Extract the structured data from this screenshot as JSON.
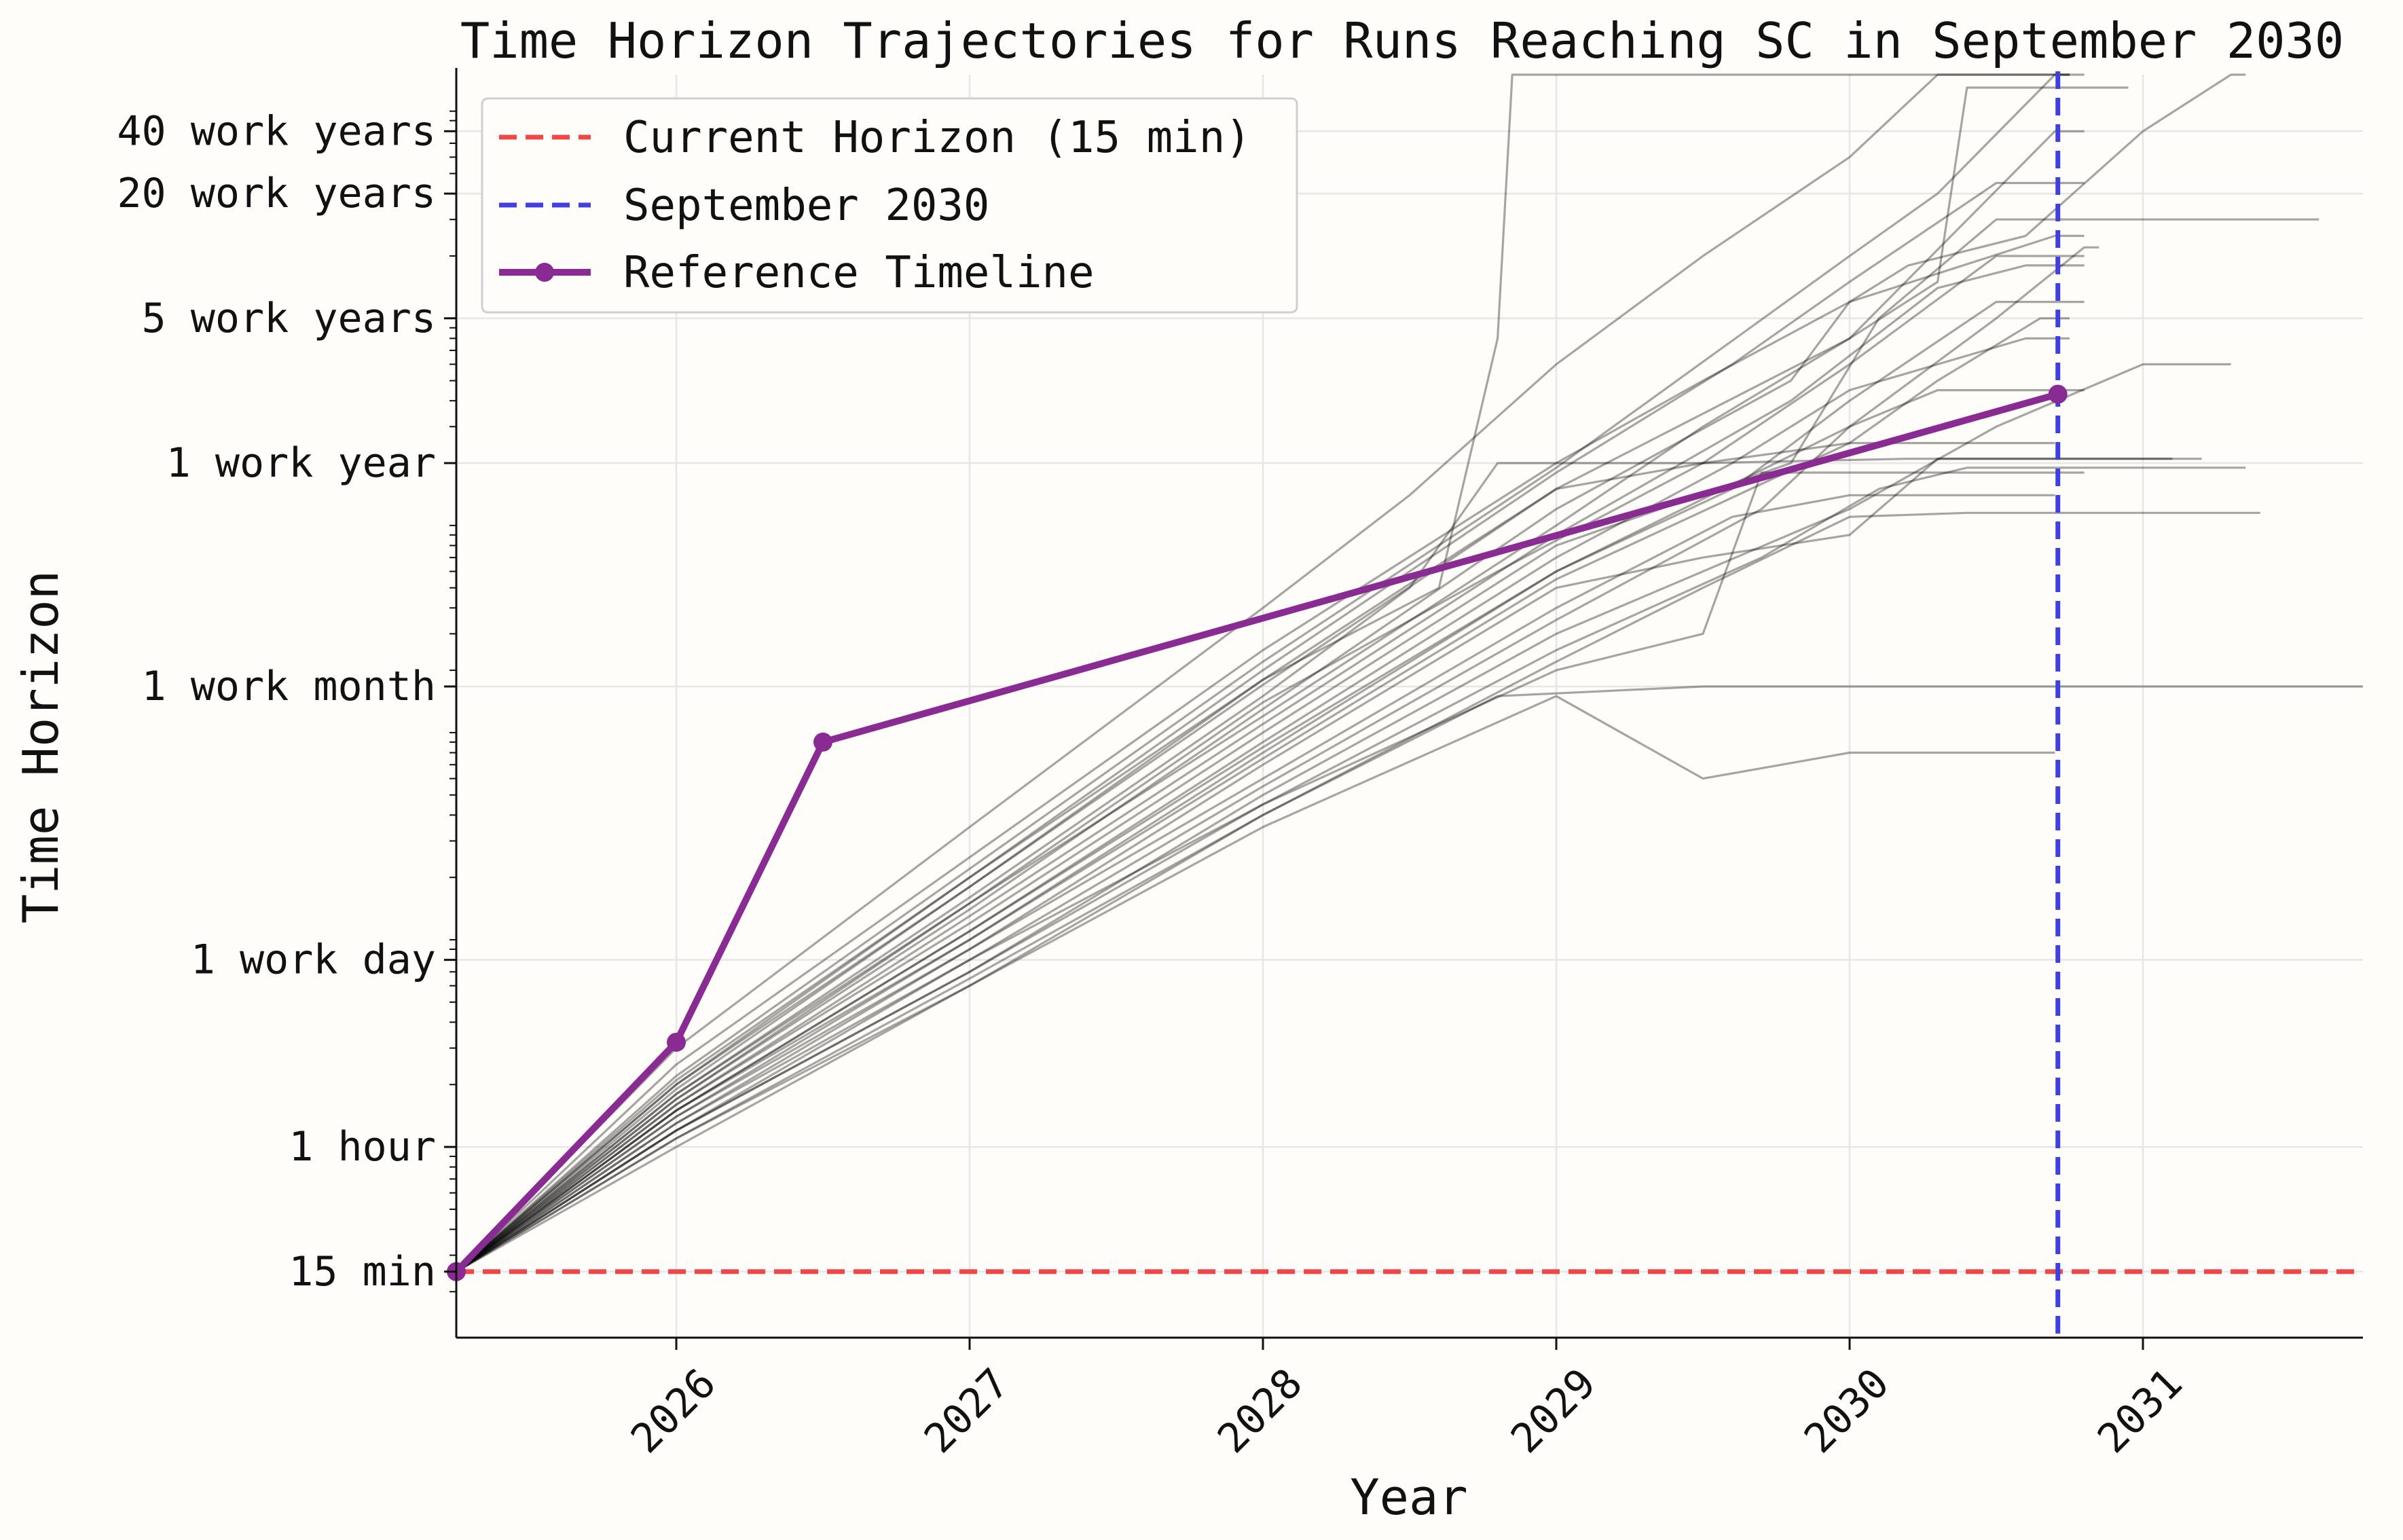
{
  "chart_data": {
    "type": "line",
    "title": "Time Horizon Trajectories for Runs Reaching SC in September 2030",
    "xlabel": "Year",
    "ylabel": "Time Horizon",
    "xlim": [
      2025.25,
      2031.75
    ],
    "ylim_hours": [
      0.12,
      150000
    ],
    "y_scale": "log",
    "grid": true,
    "legend_position": "top-left",
    "x_ticks": [
      {
        "value": 2026,
        "label": "2026"
      },
      {
        "value": 2027,
        "label": "2027"
      },
      {
        "value": 2028,
        "label": "2028"
      },
      {
        "value": 2029,
        "label": "2029"
      },
      {
        "value": 2030,
        "label": "2030"
      },
      {
        "value": 2031,
        "label": "2031"
      }
    ],
    "y_ticks": [
      {
        "hours": 0.25,
        "label": "15 min"
      },
      {
        "hours": 1,
        "label": "1 hour"
      },
      {
        "hours": 8,
        "label": "1 work day"
      },
      {
        "hours": 167,
        "label": "1 work month"
      },
      {
        "hours": 2000,
        "label": "1 work year"
      },
      {
        "hours": 10000,
        "label": "5 work years"
      },
      {
        "hours": 40000,
        "label": "20 work years"
      },
      {
        "hours": 80000,
        "label": "40 work years"
      }
    ],
    "reference_lines": [
      {
        "name": "Current Horizon (15 min)",
        "orientation": "horizontal",
        "hours": 0.25,
        "color": "#f04848",
        "style": "dashed"
      },
      {
        "name": "September 2030",
        "orientation": "vertical",
        "x": 2030.71,
        "color": "#4040e0",
        "style": "dashed"
      }
    ],
    "reference_timeline": {
      "name": "Reference Timeline",
      "color": "#8a2b94",
      "points": [
        {
          "x": 2025.25,
          "hours": 0.25
        },
        {
          "x": 2026.0,
          "hours": 3.2
        },
        {
          "x": 2026.5,
          "hours": 90
        },
        {
          "x": 2030.71,
          "hours": 4300
        }
      ]
    },
    "trajectory_style": {
      "color": "#000000",
      "opacity": 0.35
    },
    "trajectories": [
      [
        [
          2025.25,
          0.25
        ],
        [
          2026,
          3
        ],
        [
          2027,
          35
        ],
        [
          2028,
          400
        ],
        [
          2028.5,
          1400
        ],
        [
          2029,
          6000
        ],
        [
          2029.5,
          20000
        ],
        [
          2030,
          60000
        ],
        [
          2030.3,
          150000
        ],
        [
          2030.5,
          170000
        ],
        [
          2030.8,
          170000
        ]
      ],
      [
        [
          2025.25,
          0.25
        ],
        [
          2026,
          2
        ],
        [
          2027,
          20
        ],
        [
          2028,
          180
        ],
        [
          2028.6,
          500
        ],
        [
          2028.8,
          8000
        ],
        [
          2028.85,
          170000
        ],
        [
          2029.5,
          170000
        ],
        [
          2030.75,
          170000
        ]
      ],
      [
        [
          2025.25,
          0.25
        ],
        [
          2026,
          2.5
        ],
        [
          2027,
          25
        ],
        [
          2028,
          250
        ],
        [
          2029,
          2000
        ],
        [
          2029.5,
          5000
        ],
        [
          2030,
          12000
        ],
        [
          2030.2,
          18000
        ],
        [
          2030.6,
          25000
        ],
        [
          2031,
          80000
        ],
        [
          2031.3,
          280000
        ],
        [
          2031.35,
          280000
        ]
      ],
      [
        [
          2025.25,
          0.25
        ],
        [
          2026,
          1.8
        ],
        [
          2027,
          15
        ],
        [
          2028,
          120
        ],
        [
          2029,
          1000
        ],
        [
          2029.5,
          3000
        ],
        [
          2030,
          8000
        ],
        [
          2030.3,
          15000
        ],
        [
          2030.4,
          130000
        ],
        [
          2030.95,
          130000
        ]
      ],
      [
        [
          2025.25,
          0.25
        ],
        [
          2026,
          2.2
        ],
        [
          2027,
          22
        ],
        [
          2028,
          220
        ],
        [
          2029,
          1900
        ],
        [
          2030,
          20000
        ],
        [
          2030.3,
          40000
        ],
        [
          2030.7,
          200000
        ],
        [
          2030.75,
          200000
        ]
      ],
      [
        [
          2025.25,
          0.25
        ],
        [
          2026,
          1.5
        ],
        [
          2027,
          10
        ],
        [
          2028,
          80
        ],
        [
          2029,
          600
        ],
        [
          2030,
          3000
        ],
        [
          2030.5,
          10000
        ],
        [
          2030.8,
          22000
        ],
        [
          2030.85,
          22000
        ]
      ],
      [
        [
          2025.25,
          0.25
        ],
        [
          2026,
          1.6
        ],
        [
          2027,
          12
        ],
        [
          2028,
          100
        ],
        [
          2029,
          800
        ],
        [
          2029.8,
          2000
        ],
        [
          2030.1,
          10000
        ],
        [
          2030.5,
          30000
        ],
        [
          2030.9,
          30000
        ],
        [
          2031.6,
          30000
        ]
      ],
      [
        [
          2025.25,
          0.25
        ],
        [
          2026,
          1.2
        ],
        [
          2027,
          7
        ],
        [
          2028,
          50
        ],
        [
          2029,
          300
        ],
        [
          2030,
          1200
        ],
        [
          2030.5,
          3000
        ],
        [
          2031,
          6000
        ],
        [
          2031.3,
          6000
        ]
      ],
      [
        [
          2025.25,
          0.25
        ],
        [
          2026,
          1
        ],
        [
          2027,
          6
        ],
        [
          2028,
          40
        ],
        [
          2028.8,
          150
        ],
        [
          2029.5,
          167
        ],
        [
          2031.75,
          167
        ]
      ],
      [
        [
          2025.25,
          0.25
        ],
        [
          2026,
          1.4
        ],
        [
          2027,
          9
        ],
        [
          2028,
          60
        ],
        [
          2029,
          400
        ],
        [
          2029.6,
          1100
        ],
        [
          2030,
          1400
        ],
        [
          2030.7,
          1400
        ]
      ],
      [
        [
          2025.25,
          0.25
        ],
        [
          2026,
          1.3
        ],
        [
          2027,
          8
        ],
        [
          2028,
          45
        ],
        [
          2029,
          200
        ],
        [
          2029.5,
          300
        ],
        [
          2029.7,
          1800
        ],
        [
          2030.8,
          1800
        ]
      ],
      [
        [
          2025.25,
          0.25
        ],
        [
          2026,
          1.7
        ],
        [
          2027,
          14
        ],
        [
          2028,
          130
        ],
        [
          2029,
          1200
        ],
        [
          2029.8,
          5000
        ],
        [
          2030,
          12000
        ],
        [
          2030.7,
          25000
        ],
        [
          2030.8,
          25000
        ]
      ],
      [
        [
          2025.25,
          0.25
        ],
        [
          2026,
          2
        ],
        [
          2027,
          18
        ],
        [
          2028,
          170
        ],
        [
          2029,
          1500
        ],
        [
          2030,
          8000
        ],
        [
          2030.7,
          80000
        ],
        [
          2030.8,
          80000
        ]
      ],
      [
        [
          2025.25,
          0.25
        ],
        [
          2026,
          1.1
        ],
        [
          2027,
          6
        ],
        [
          2028,
          35
        ],
        [
          2029,
          150
        ],
        [
          2029.5,
          60
        ],
        [
          2030,
          80
        ],
        [
          2030.7,
          80
        ]
      ],
      [
        [
          2025.25,
          0.25
        ],
        [
          2026,
          1.2
        ],
        [
          2027,
          7
        ],
        [
          2028,
          45
        ],
        [
          2029,
          250
        ],
        [
          2029.7,
          700
        ],
        [
          2030.1,
          1500
        ],
        [
          2030.4,
          1900
        ],
        [
          2031.35,
          1900
        ]
      ],
      [
        [
          2025.25,
          0.25
        ],
        [
          2026,
          1.5
        ],
        [
          2027,
          11
        ],
        [
          2028,
          90
        ],
        [
          2029,
          700
        ],
        [
          2029.6,
          2000
        ],
        [
          2030,
          4500
        ],
        [
          2030.6,
          8000
        ],
        [
          2030.75,
          8000
        ]
      ],
      [
        [
          2025.25,
          0.25
        ],
        [
          2026,
          1.8
        ],
        [
          2027,
          16
        ],
        [
          2028,
          150
        ],
        [
          2028.5,
          500
        ],
        [
          2028.8,
          2000
        ],
        [
          2029.5,
          2000
        ],
        [
          2030.2,
          2100
        ],
        [
          2031.1,
          2100
        ]
      ],
      [
        [
          2025.25,
          0.25
        ],
        [
          2026,
          1.3
        ],
        [
          2027,
          9
        ],
        [
          2028,
          70
        ],
        [
          2029,
          500
        ],
        [
          2029.5,
          700
        ],
        [
          2030,
          900
        ],
        [
          2030.3,
          2100
        ],
        [
          2031.2,
          2100
        ]
      ],
      [
        [
          2025.25,
          0.25
        ],
        [
          2026,
          1.6
        ],
        [
          2027,
          13
        ],
        [
          2028,
          110
        ],
        [
          2029,
          900
        ],
        [
          2029.8,
          4000
        ],
        [
          2030.3,
          14000
        ],
        [
          2030.6,
          18000
        ],
        [
          2030.8,
          18000
        ]
      ],
      [
        [
          2025.25,
          0.25
        ],
        [
          2026,
          1.4
        ],
        [
          2027,
          10
        ],
        [
          2028,
          75
        ],
        [
          2029,
          550
        ],
        [
          2030,
          2500
        ],
        [
          2030.3,
          5000
        ],
        [
          2030.65,
          10000
        ],
        [
          2030.75,
          10000
        ]
      ],
      [
        [
          2025.25,
          0.25
        ],
        [
          2026,
          1.9
        ],
        [
          2027,
          18
        ],
        [
          2028,
          180
        ],
        [
          2028.7,
          800
        ],
        [
          2029,
          1500
        ],
        [
          2029.5,
          2000
        ],
        [
          2030,
          2500
        ],
        [
          2030.7,
          2500
        ]
      ],
      [
        [
          2025.25,
          0.25
        ],
        [
          2026,
          1.2
        ],
        [
          2027,
          8
        ],
        [
          2028,
          55
        ],
        [
          2029,
          350
        ],
        [
          2029.7,
          1200
        ],
        [
          2030,
          3000
        ],
        [
          2030.3,
          4500
        ],
        [
          2030.8,
          4500
        ]
      ],
      [
        [
          2025.25,
          0.25
        ],
        [
          2026,
          2.1
        ],
        [
          2027,
          20
        ],
        [
          2028,
          200
        ],
        [
          2029,
          1800
        ],
        [
          2029.6,
          6000
        ],
        [
          2030,
          15000
        ],
        [
          2030.5,
          45000
        ],
        [
          2030.8,
          45000
        ]
      ],
      [
        [
          2025.25,
          0.25
        ],
        [
          2026,
          1.5
        ],
        [
          2027,
          11
        ],
        [
          2028,
          85
        ],
        [
          2029,
          600
        ],
        [
          2029.6,
          1500
        ],
        [
          2030,
          4000
        ],
        [
          2030.5,
          12000
        ],
        [
          2030.8,
          12000
        ]
      ],
      [
        [
          2025.25,
          0.25
        ],
        [
          2026,
          1.1
        ],
        [
          2027,
          6.5
        ],
        [
          2028,
          40
        ],
        [
          2029,
          220
        ],
        [
          2029.5,
          500
        ],
        [
          2030,
          1100
        ],
        [
          2030.4,
          1150
        ],
        [
          2031.4,
          1150
        ]
      ],
      [
        [
          2025.25,
          0.25
        ],
        [
          2026,
          1.7
        ],
        [
          2027,
          15
        ],
        [
          2028,
          140
        ],
        [
          2028.8,
          600
        ],
        [
          2029.5,
          2000
        ],
        [
          2030,
          6000
        ],
        [
          2030.5,
          20000
        ],
        [
          2030.8,
          20000
        ]
      ]
    ]
  },
  "legend": {
    "items": [
      {
        "label": "Current Horizon (15 min)",
        "color": "#f04848",
        "kind": "dashed"
      },
      {
        "label": "September 2030",
        "color": "#4040e0",
        "kind": "dashed"
      },
      {
        "label": "Reference Timeline",
        "color": "#8a2b94",
        "kind": "marker-line"
      }
    ]
  }
}
